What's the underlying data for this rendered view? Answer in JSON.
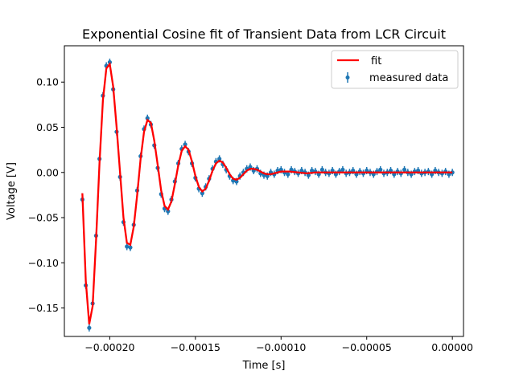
{
  "chart_data": {
    "type": "scatter",
    "title": "Exponential Cosine fit of Transient Data from LCR Circuit",
    "xlabel": "Time [s]",
    "ylabel": "Voltage [V]",
    "xlim": [
      -0.0002265,
      6.5e-06
    ],
    "ylim": [
      -0.1815,
      0.1402
    ],
    "xticks": [
      -0.0002,
      -0.00015,
      -0.0001,
      -5e-05,
      0.0
    ],
    "xtick_labels": [
      "−0.00020",
      "−0.00015",
      "−0.00010",
      "−0.00005",
      "0.00000"
    ],
    "yticks": [
      -0.15,
      -0.1,
      -0.05,
      0.0,
      0.05,
      0.1
    ],
    "ytick_labels": [
      "−0.15",
      "−0.10",
      "−0.05",
      "0.00",
      "0.05",
      "0.10"
    ],
    "grid": false,
    "legend_position": "top-right",
    "colors": {
      "fit": "#ff0000",
      "measured": "#1f77b4"
    },
    "series": [
      {
        "name": "fit",
        "kind": "line",
        "x": [
          -0.000216,
          -0.000214,
          -0.000212,
          -0.00021,
          -0.000208,
          -0.000206,
          -0.000204,
          -0.000202,
          -0.0002,
          -0.000198,
          -0.000196,
          -0.000194,
          -0.000192,
          -0.00019,
          -0.000188,
          -0.000186,
          -0.000184,
          -0.000182,
          -0.00018,
          -0.000178,
          -0.000176,
          -0.000174,
          -0.000172,
          -0.00017,
          -0.000168,
          -0.000166,
          -0.000164,
          -0.000162,
          -0.00016,
          -0.000158,
          -0.000156,
          -0.000154,
          -0.000152,
          -0.00015,
          -0.000148,
          -0.000146,
          -0.000144,
          -0.000142,
          -0.00014,
          -0.000138,
          -0.000136,
          -0.000134,
          -0.000132,
          -0.00013,
          -0.000128,
          -0.000126,
          -0.000124,
          -0.000122,
          -0.00012,
          -0.000118,
          -0.000116,
          -0.000114,
          -0.000112,
          -0.00011,
          -0.000108,
          -0.000106,
          -0.000104,
          -0.000102,
          -0.0001,
          -9.5e-05,
          -9e-05,
          -8.5e-05,
          -8e-05,
          -7.5e-05,
          -7e-05,
          -6.5e-05,
          -6e-05,
          -5.5e-05,
          -5e-05,
          -4.5e-05,
          -4e-05,
          -3.5e-05,
          -3e-05,
          -2.5e-05,
          -2e-05,
          -1.5e-05,
          -1e-05,
          -5e-06,
          0.0
        ],
        "y": [
          -0.023,
          -0.12,
          -0.168,
          -0.148,
          -0.075,
          0.01,
          0.08,
          0.115,
          0.12,
          0.095,
          0.05,
          0.0,
          -0.05,
          -0.078,
          -0.08,
          -0.06,
          -0.025,
          0.015,
          0.045,
          0.058,
          0.055,
          0.035,
          0.008,
          -0.02,
          -0.037,
          -0.041,
          -0.032,
          -0.013,
          0.008,
          0.024,
          0.029,
          0.025,
          0.012,
          -0.004,
          -0.016,
          -0.021,
          -0.018,
          -0.009,
          0.002,
          0.01,
          0.013,
          0.011,
          0.005,
          -0.002,
          -0.007,
          -0.008,
          -0.006,
          -0.002,
          0.002,
          0.004,
          0.004,
          0.003,
          0.001,
          -0.001,
          -0.002,
          -0.002,
          -0.001,
          0.0,
          0.001,
          0.001,
          0.0,
          -0.001,
          0.0,
          0.0,
          0.0,
          0.0,
          0.0,
          0.0,
          0.0,
          0.0,
          0.0,
          0.0,
          0.0,
          0.0,
          0.0,
          0.0,
          0.0,
          0.0,
          0.0
        ]
      },
      {
        "name": "measured data",
        "kind": "errorbar",
        "x": [
          -0.000216,
          -0.000214,
          -0.000212,
          -0.00021,
          -0.000208,
          -0.000206,
          -0.000204,
          -0.000202,
          -0.0002,
          -0.000198,
          -0.000196,
          -0.000194,
          -0.000192,
          -0.00019,
          -0.000188,
          -0.000186,
          -0.000184,
          -0.000182,
          -0.00018,
          -0.000178,
          -0.000176,
          -0.000174,
          -0.000172,
          -0.00017,
          -0.000168,
          -0.000166,
          -0.000164,
          -0.000162,
          -0.00016,
          -0.000158,
          -0.000156,
          -0.000154,
          -0.000152,
          -0.00015,
          -0.000148,
          -0.000146,
          -0.000144,
          -0.000142,
          -0.00014,
          -0.000138,
          -0.000136,
          -0.000134,
          -0.000132,
          -0.00013,
          -0.000128,
          -0.000126,
          -0.000124,
          -0.000122,
          -0.00012,
          -0.000118,
          -0.000116,
          -0.000114,
          -0.000112,
          -0.00011,
          -0.000108,
          -0.000106,
          -0.000104,
          -0.000102,
          -0.0001,
          -9.8e-05,
          -9.6e-05,
          -9.4e-05,
          -9.2e-05,
          -9e-05,
          -8.8e-05,
          -8.6e-05,
          -8.4e-05,
          -8.2e-05,
          -8e-05,
          -7.8e-05,
          -7.6e-05,
          -7.4e-05,
          -7.2e-05,
          -7e-05,
          -6.8e-05,
          -6.6e-05,
          -6.4e-05,
          -6.2e-05,
          -6e-05,
          -5.8e-05,
          -5.6e-05,
          -5.4e-05,
          -5.2e-05,
          -5e-05,
          -4.8e-05,
          -4.6e-05,
          -4.4e-05,
          -4.2e-05,
          -4e-05,
          -3.8e-05,
          -3.6e-05,
          -3.4e-05,
          -3.2e-05,
          -3e-05,
          -2.8e-05,
          -2.6e-05,
          -2.4e-05,
          -2.2e-05,
          -2e-05,
          -1.8e-05,
          -1.6e-05,
          -1.4e-05,
          -1.2e-05,
          -1e-05,
          -8e-06,
          -6e-06,
          -4e-06,
          -2e-06,
          0.0
        ],
        "y": [
          -0.03,
          -0.125,
          -0.172,
          -0.145,
          -0.07,
          0.015,
          0.085,
          0.118,
          0.122,
          0.092,
          0.045,
          -0.005,
          -0.055,
          -0.082,
          -0.083,
          -0.058,
          -0.02,
          0.018,
          0.048,
          0.06,
          0.053,
          0.03,
          0.005,
          -0.024,
          -0.04,
          -0.043,
          -0.03,
          -0.01,
          0.01,
          0.026,
          0.031,
          0.023,
          0.01,
          -0.006,
          -0.018,
          -0.023,
          -0.016,
          -0.007,
          0.004,
          0.012,
          0.015,
          0.009,
          0.003,
          -0.004,
          -0.009,
          -0.01,
          -0.004,
          0.0,
          0.004,
          0.006,
          0.002,
          0.004,
          -0.001,
          -0.003,
          -0.004,
          0.0,
          -0.002,
          0.002,
          0.003,
          0.0,
          -0.002,
          0.003,
          0.001,
          -0.001,
          0.002,
          0.0,
          -0.003,
          0.002,
          0.001,
          -0.002,
          0.003,
          0.0,
          -0.001,
          0.002,
          -0.002,
          0.001,
          0.003,
          -0.001,
          0.0,
          0.002,
          -0.002,
          0.001,
          -0.001,
          0.002,
          0.0,
          -0.002,
          0.001,
          0.003,
          -0.001,
          0.0,
          0.002,
          -0.002,
          0.001,
          -0.001,
          0.003,
          0.0,
          -0.002,
          0.001,
          0.002,
          -0.001,
          0.0,
          0.001,
          -0.002,
          0.002,
          0.0,
          -0.001,
          0.001,
          -0.002,
          0.0
        ],
        "yerr": 0.004
      }
    ]
  }
}
